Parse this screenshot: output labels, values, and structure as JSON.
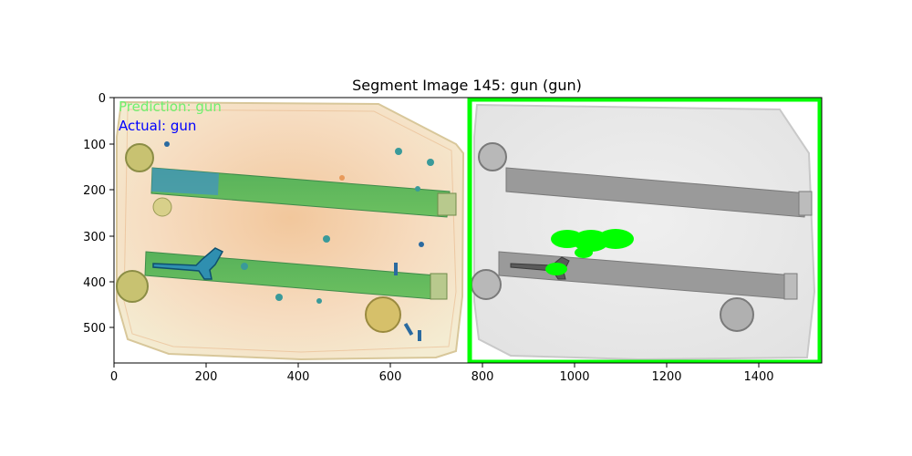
{
  "figure": {
    "title": "Segment Image 145: gun (gun)",
    "prediction_text": "Prediction: gun",
    "actual_text": "Actual: gun",
    "prediction_color": "#6ff06f",
    "actual_color": "#0000ff",
    "mask_color": "#00ff00",
    "frame_color": "#00ff00"
  },
  "x_axis": {
    "ticks": [
      "0",
      "200",
      "400",
      "600",
      "800",
      "1000",
      "1200",
      "1400"
    ]
  },
  "y_axis": {
    "ticks": [
      "0",
      "100",
      "200",
      "300",
      "400",
      "500"
    ]
  }
}
